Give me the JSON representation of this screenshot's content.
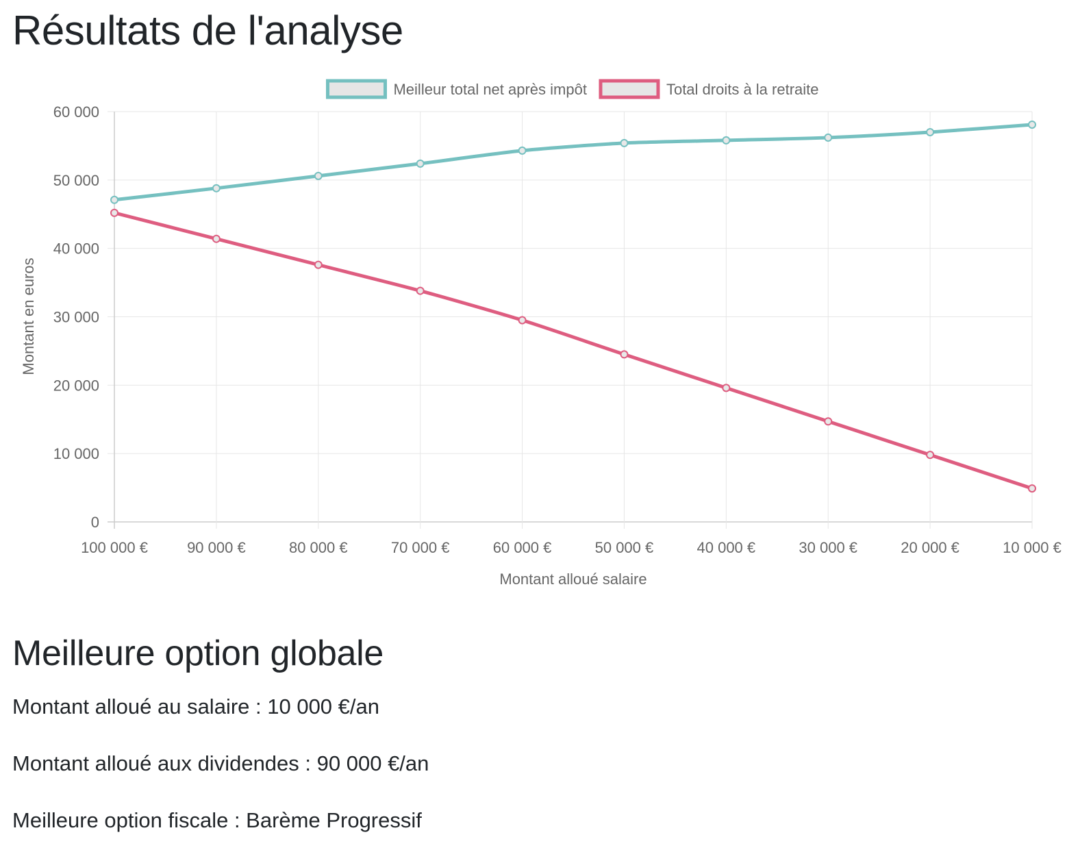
{
  "page": {
    "title": "Résultats de l'analyse",
    "best_option_heading": "Meilleure option globale",
    "salary_line": {
      "label": "Montant alloué au salaire",
      "value": "10 000 €/an"
    },
    "dividends_line": {
      "label": "Montant alloué aux dividendes",
      "value": "90 000 €/an"
    },
    "tax_line": {
      "label": "Meilleure option fiscale",
      "value": "Barème Progressif"
    }
  },
  "chart_data": {
    "type": "line",
    "title": "",
    "xlabel": "Montant alloué salaire",
    "ylabel": "Montant en euros",
    "ylim": [
      0,
      60000
    ],
    "y_ticks": [
      "0",
      "10 000",
      "20 000",
      "30 000",
      "40 000",
      "50 000",
      "60 000"
    ],
    "y_tick_values": [
      0,
      10000,
      20000,
      30000,
      40000,
      50000,
      60000
    ],
    "categories": [
      "100 000 €",
      "90 000 €",
      "80 000 €",
      "70 000 €",
      "60 000 €",
      "50 000 €",
      "40 000 €",
      "30 000 €",
      "20 000 €",
      "10 000 €"
    ],
    "grid": true,
    "legend_position": "top",
    "series": [
      {
        "name": "Meilleur total net après impôt",
        "color": "#75c0c0",
        "values": [
          47100,
          48800,
          50600,
          52400,
          54300,
          55400,
          55800,
          56200,
          57000,
          58100
        ]
      },
      {
        "name": "Total droits à la retraite",
        "color": "#de5d80",
        "values": [
          45200,
          41400,
          37600,
          33800,
          29500,
          24500,
          19600,
          14700,
          9800,
          4900
        ]
      }
    ]
  }
}
